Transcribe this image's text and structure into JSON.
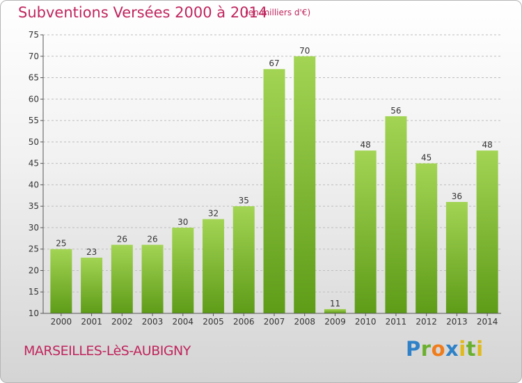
{
  "header": {
    "title": "Subventions Versées 2000 à 2014",
    "unit": "(en milliers d'€)"
  },
  "footer": {
    "place": "MARSEILLES-LèS-AUBIGNY",
    "brand_letters": [
      {
        "ch": "P",
        "color": "#2f82c8"
      },
      {
        "ch": "r",
        "color": "#6ab02e"
      },
      {
        "ch": "o",
        "color": "#f07d1c"
      },
      {
        "ch": "x",
        "color": "#2f82c8"
      },
      {
        "ch": "i",
        "color": "#e0b91a"
      },
      {
        "ch": "t",
        "color": "#6ab02e"
      },
      {
        "ch": "i",
        "color": "#e0b91a"
      }
    ]
  },
  "colors": {
    "bar_light": "#a3d454",
    "bar_dark": "#5e9c18",
    "grid": "#bdbdbd",
    "text": "#333333"
  },
  "chart_data": {
    "type": "bar",
    "title": "Subventions Versées 2000 à 2014",
    "subtitle": "(en milliers d'€)",
    "categories": [
      "2000",
      "2001",
      "2002",
      "2003",
      "2004",
      "2005",
      "2006",
      "2007",
      "2008",
      "2009",
      "2010",
      "2011",
      "2012",
      "2013",
      "2014"
    ],
    "values": [
      25,
      23,
      26,
      26,
      30,
      32,
      35,
      67,
      70,
      11,
      48,
      56,
      45,
      36,
      48
    ],
    "ylim": [
      10,
      75
    ],
    "yticks": [
      10,
      15,
      20,
      25,
      30,
      35,
      40,
      45,
      50,
      55,
      60,
      65,
      70,
      75
    ],
    "grid": "horizontal dashed",
    "legend": "none"
  }
}
